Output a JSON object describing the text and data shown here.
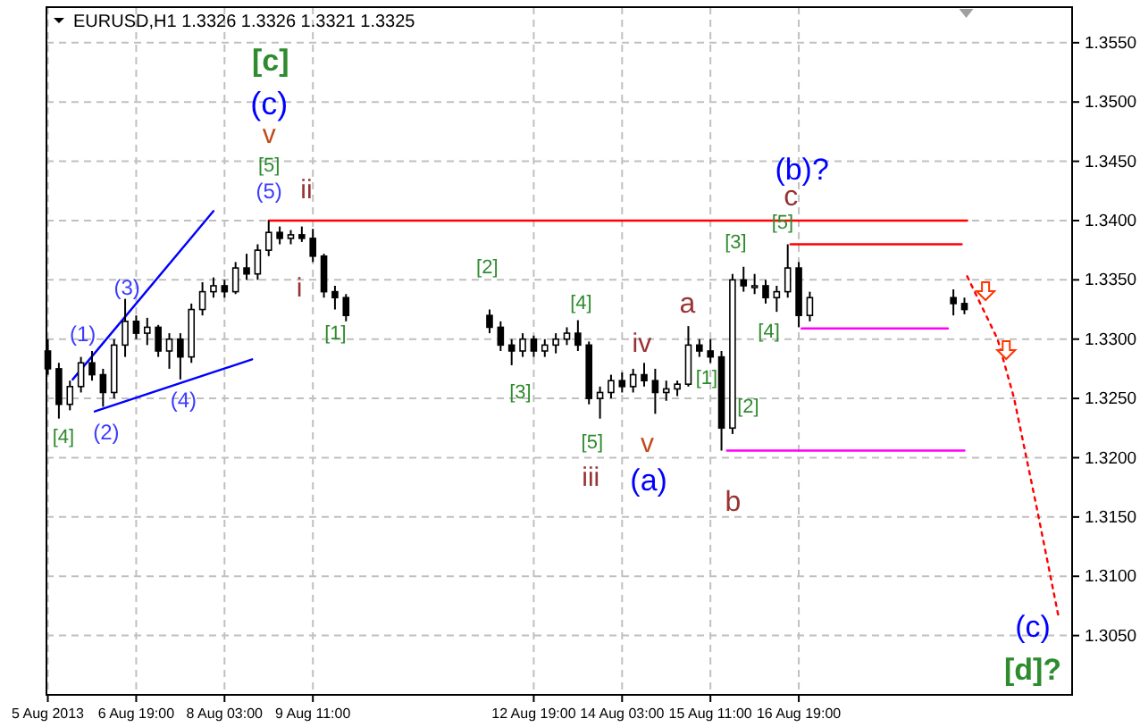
{
  "chart_data": {
    "type": "candlestick",
    "title": "EURUSD,H1  1.3326 1.3326 1.3321 1.3325",
    "x": [
      "2013-08-05T11:00",
      "2013-08-05T15:00",
      "2013-08-05T19:00",
      "2013-08-05T23:00",
      "2013-08-06T03:00",
      "2013-08-06T07:00",
      "2013-08-06T11:00",
      "2013-08-06T15:00",
      "2013-08-06T19:00",
      "2013-08-06T23:00",
      "2013-08-07T03:00",
      "2013-08-07T07:00",
      "2013-08-07T11:00",
      "2013-08-07T15:00",
      "2013-08-07T19:00",
      "2013-08-07T23:00",
      "2013-08-08T03:00",
      "2013-08-08T07:00",
      "2013-08-08T11:00",
      "2013-08-08T15:00",
      "2013-08-08T19:00",
      "2013-08-08T23:00",
      "2013-08-09T03:00",
      "2013-08-09T07:00",
      "2013-08-09T11:00",
      "2013-08-09T15:00",
      "2013-08-09T19:00",
      "2013-08-09T23:00",
      "2013-08-12T03:00",
      "2013-08-12T07:00",
      "2013-08-12T11:00",
      "2013-08-12T15:00",
      "2013-08-12T19:00",
      "2013-08-12T23:00",
      "2013-08-13T03:00",
      "2013-08-13T07:00",
      "2013-08-13T11:00",
      "2013-08-13T15:00",
      "2013-08-13T19:00",
      "2013-08-13T23:00",
      "2013-08-14T03:00",
      "2013-08-14T07:00",
      "2013-08-14T11:00",
      "2013-08-14T15:00",
      "2013-08-14T19:00",
      "2013-08-14T23:00",
      "2013-08-15T03:00",
      "2013-08-15T07:00",
      "2013-08-15T11:00",
      "2013-08-15T15:00",
      "2013-08-15T19:00",
      "2013-08-15T23:00",
      "2013-08-16T03:00",
      "2013-08-16T07:00",
      "2013-08-16T11:00",
      "2013-08-16T15:00",
      "2013-08-16T19:00",
      "2013-08-16T23:00",
      "2013-08-19T03:00",
      "2013-08-19T07:00"
    ],
    "ohlc": [
      [
        1.329,
        1.33,
        1.327,
        1.3275
      ],
      [
        1.3275,
        1.328,
        1.3233,
        1.3245
      ],
      [
        1.3245,
        1.3265,
        1.324,
        1.326
      ],
      [
        1.326,
        1.3285,
        1.3255,
        1.328
      ],
      [
        1.328,
        1.329,
        1.3265,
        1.327
      ],
      [
        1.327,
        1.3275,
        1.3243,
        1.3255
      ],
      [
        1.3255,
        1.33,
        1.325,
        1.3295
      ],
      [
        1.3295,
        1.3334,
        1.3285,
        1.3315
      ],
      [
        1.3315,
        1.332,
        1.33,
        1.3305
      ],
      [
        1.3305,
        1.3318,
        1.3295,
        1.331
      ],
      [
        1.331,
        1.3312,
        1.3285,
        1.329
      ],
      [
        1.329,
        1.3305,
        1.3275,
        1.33
      ],
      [
        1.33,
        1.3305,
        1.3266,
        1.3285
      ],
      [
        1.3285,
        1.333,
        1.328,
        1.3325
      ],
      [
        1.3325,
        1.3348,
        1.332,
        1.334
      ],
      [
        1.334,
        1.3352,
        1.3335,
        1.3345
      ],
      [
        1.3345,
        1.335,
        1.3335,
        1.334
      ],
      [
        1.334,
        1.3365,
        1.3338,
        1.336
      ],
      [
        1.336,
        1.3372,
        1.335,
        1.3355
      ],
      [
        1.3355,
        1.338,
        1.335,
        1.3375
      ],
      [
        1.3375,
        1.34,
        1.337,
        1.339
      ],
      [
        1.339,
        1.3395,
        1.338,
        1.3385
      ],
      [
        1.3385,
        1.3392,
        1.338,
        1.3388
      ],
      [
        1.3388,
        1.3395,
        1.3382,
        1.3385
      ],
      [
        1.3385,
        1.3393,
        1.3365,
        1.337
      ],
      [
        1.337,
        1.3372,
        1.3335,
        1.334
      ],
      [
        1.334,
        1.3345,
        1.3325,
        1.3335
      ],
      [
        1.3335,
        1.3338,
        1.3315,
        1.332
      ],
      [
        1.332,
        1.3325,
        1.3305,
        1.331
      ],
      [
        1.331,
        1.3315,
        1.329,
        1.3295
      ],
      [
        1.3295,
        1.33,
        1.3278,
        1.329
      ],
      [
        1.329,
        1.3305,
        1.3285,
        1.33
      ],
      [
        1.33,
        1.3303,
        1.3285,
        1.329
      ],
      [
        1.329,
        1.33,
        1.3285,
        1.3295
      ],
      [
        1.3295,
        1.3305,
        1.3288,
        1.33
      ],
      [
        1.33,
        1.331,
        1.3295,
        1.3305
      ],
      [
        1.3305,
        1.3316,
        1.329,
        1.3295
      ],
      [
        1.3295,
        1.3298,
        1.3245,
        1.325
      ],
      [
        1.325,
        1.326,
        1.3233,
        1.3255
      ],
      [
        1.3255,
        1.327,
        1.325,
        1.3265
      ],
      [
        1.3265,
        1.3272,
        1.3255,
        1.326
      ],
      [
        1.326,
        1.3275,
        1.3255,
        1.327
      ],
      [
        1.327,
        1.328,
        1.326,
        1.3265
      ],
      [
        1.3265,
        1.3275,
        1.3237,
        1.3255
      ],
      [
        1.3255,
        1.3265,
        1.3248,
        1.3258
      ],
      [
        1.3258,
        1.3265,
        1.3252,
        1.3262
      ],
      [
        1.3262,
        1.3311,
        1.326,
        1.3295
      ],
      [
        1.3295,
        1.33,
        1.3285,
        1.329
      ],
      [
        1.329,
        1.33,
        1.328,
        1.3285
      ],
      [
        1.3285,
        1.329,
        1.3206,
        1.3225
      ],
      [
        1.3225,
        1.3355,
        1.322,
        1.335
      ],
      [
        1.335,
        1.3361,
        1.334,
        1.3345
      ],
      [
        1.3345,
        1.3355,
        1.3338,
        1.3345
      ],
      [
        1.3345,
        1.335,
        1.333,
        1.3335
      ],
      [
        1.3335,
        1.3345,
        1.3323,
        1.334
      ],
      [
        1.334,
        1.338,
        1.3335,
        1.336
      ],
      [
        1.336,
        1.3365,
        1.331,
        1.332
      ],
      [
        1.332,
        1.334,
        1.3315,
        1.3335
      ],
      [
        1.3335,
        1.3342,
        1.332,
        1.333
      ],
      [
        1.333,
        1.3335,
        1.3321,
        1.3325
      ]
    ],
    "series": [
      {
        "type": "line",
        "color": "#0000ff",
        "line_style": "solid",
        "x": [
          "2013-08-05T20:00",
          "2013-08-07T23:00"
        ],
        "values": [
          1.3266,
          1.3408
        ]
      },
      {
        "type": "line",
        "color": "#0000ff",
        "line_style": "solid",
        "x": [
          "2013-08-06T04:00",
          "2013-08-08T13:00"
        ],
        "values": [
          1.3239,
          1.3283
        ]
      },
      {
        "type": "line",
        "color": "#ff0000",
        "line_style": "solid",
        "x": [
          "2013-08-08T19:00",
          "2013-08-19T08:00"
        ],
        "values": [
          1.34,
          1.34
        ]
      },
      {
        "type": "line",
        "color": "#ff0000",
        "line_style": "solid",
        "x": [
          "2013-08-16T16:00",
          "2013-08-19T06:00"
        ],
        "values": [
          1.338,
          1.338
        ]
      },
      {
        "type": "line",
        "color": "#ff00ff",
        "line_style": "solid",
        "x": [
          "2013-08-16T20:00",
          "2013-08-19T01:00"
        ],
        "values": [
          1.3309,
          1.3309
        ]
      },
      {
        "type": "line",
        "color": "#ff00ff",
        "line_style": "solid",
        "x": [
          "2013-08-15T17:00",
          "2013-08-19T07:00"
        ],
        "values": [
          1.3206,
          1.3206
        ]
      },
      {
        "type": "line",
        "color": "#ff0000",
        "line_style": "dotted",
        "x": [
          "2013-08-19T08:00",
          "2013-08-19T19:00",
          "2013-08-20T01:00",
          "2013-08-20T09:00",
          "2013-08-20T17:00"
        ],
        "values": [
          1.3353,
          1.33,
          1.325,
          1.316,
          1.3067
        ]
      }
    ],
    "xlim": [
      "2013-08-05T10:30",
      "2013-08-20T22:00"
    ],
    "xticks": [
      {
        "value": "2013-08-05T11:00",
        "label": "5 Aug 2013"
      },
      {
        "value": "2013-08-06T19:00",
        "label": "6 Aug 19:00"
      },
      {
        "value": "2013-08-08T03:00",
        "label": "8 Aug 03:00"
      },
      {
        "value": "2013-08-09T11:00",
        "label": "9 Aug 11:00"
      },
      {
        "value": "2013-08-12T19:00",
        "label": "12 Aug 19:00"
      },
      {
        "value": "2013-08-14T03:00",
        "label": "14 Aug 03:00"
      },
      {
        "value": "2013-08-15T11:00",
        "label": "15 Aug 11:00"
      },
      {
        "value": "2013-08-16T19:00",
        "label": "16 Aug 19:00"
      }
    ],
    "ylim": [
      1.3,
      1.358
    ],
    "yticks": [
      {
        "value": 1.305,
        "label": "1.3050"
      },
      {
        "value": 1.31,
        "label": "1.3100"
      },
      {
        "value": 1.315,
        "label": "1.3150"
      },
      {
        "value": 1.32,
        "label": "1.3200"
      },
      {
        "value": 1.325,
        "label": "1.3250"
      },
      {
        "value": 1.33,
        "label": "1.3300"
      },
      {
        "value": 1.335,
        "label": "1.3350"
      },
      {
        "value": 1.34,
        "label": "1.3400"
      },
      {
        "value": 1.345,
        "label": "1.3450"
      },
      {
        "value": 1.35,
        "label": "1.3500"
      },
      {
        "value": 1.355,
        "label": "1.3550"
      }
    ],
    "grid": true,
    "annotations": [
      "[4]",
      "(1)",
      "(2)",
      "(3)",
      "(4)",
      "(5)",
      "[5]",
      "v",
      "(c)",
      "[c]",
      "ii",
      "i",
      "[2]",
      "[1]",
      "[3]",
      "[4]",
      "[5]",
      "iii",
      "iv",
      "v",
      "(a)",
      "a",
      "[1]",
      "[2]",
      "b",
      "[3]",
      "[4]",
      "[5]",
      "c",
      "(b)?",
      "(c)",
      "[d]?"
    ]
  }
}
